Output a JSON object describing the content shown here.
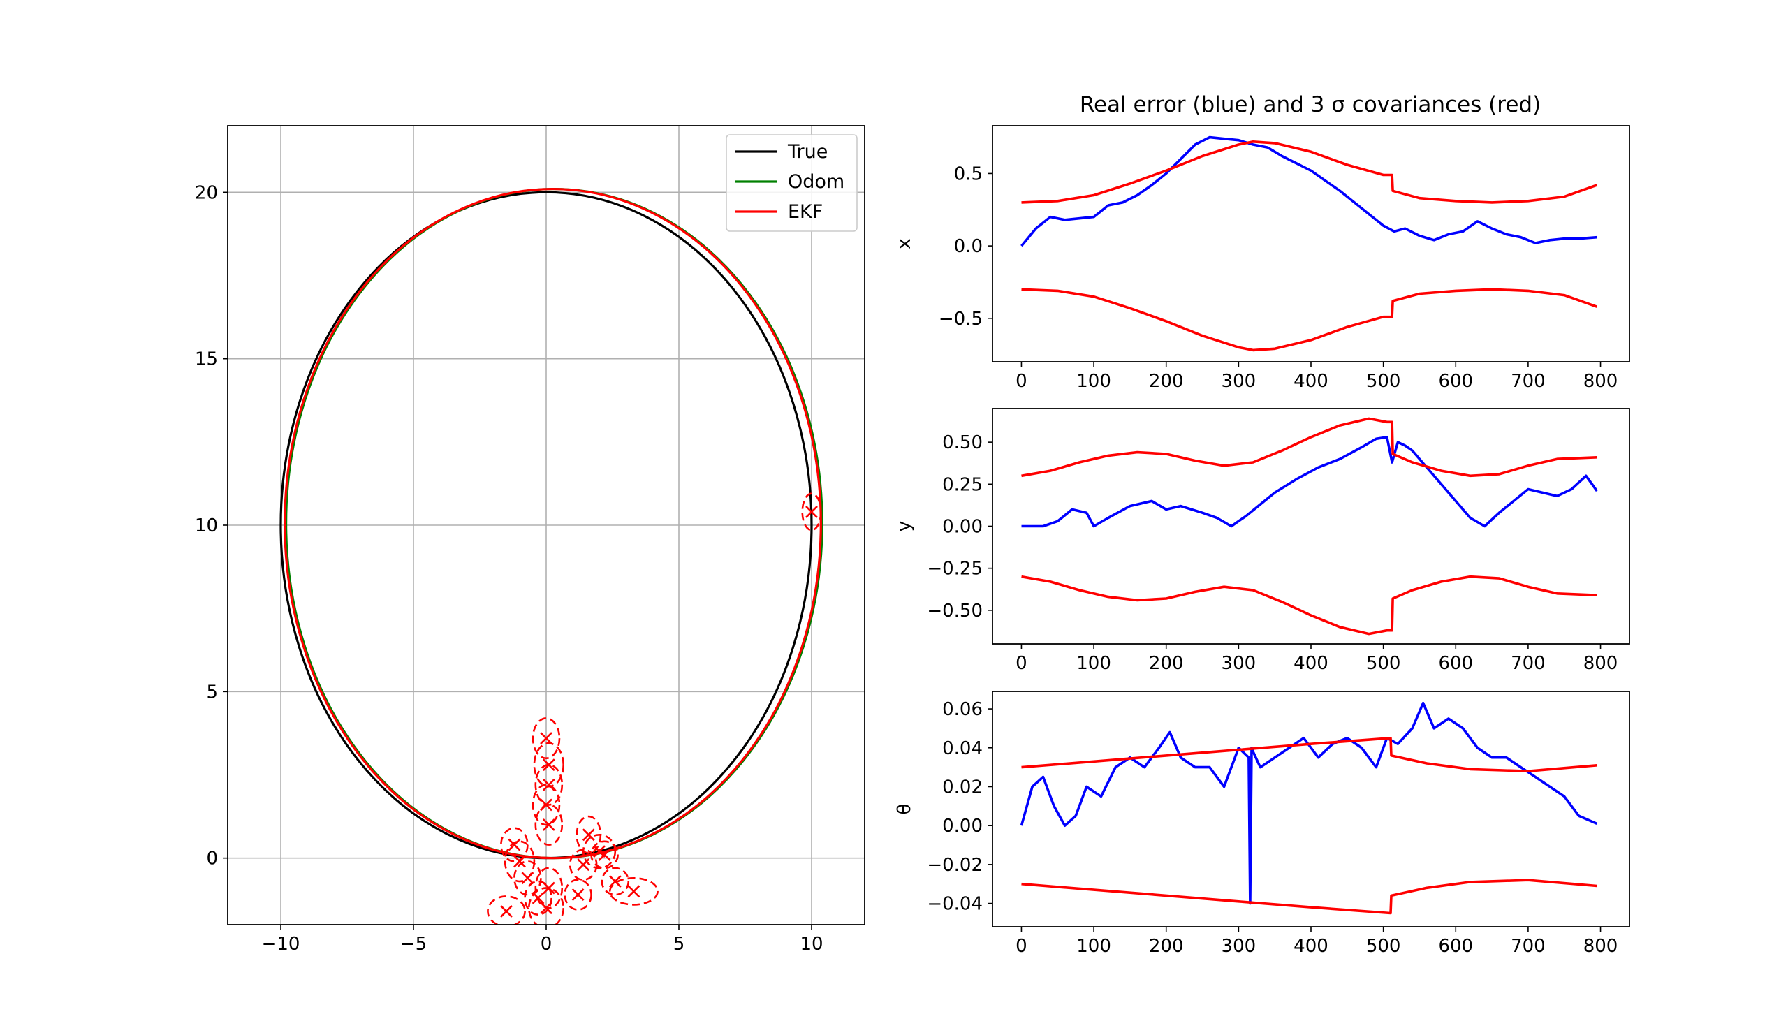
{
  "title": "Real error (blue) and 3 σ covariances (red)",
  "colors": {
    "true": "#000000",
    "odom": "#008000",
    "ekf": "#ff0000",
    "error": "#0000ff",
    "grid": "#b0b0b0"
  },
  "chart_data": [
    {
      "type": "line",
      "panel": "trajectory",
      "xlim": [
        -12,
        12
      ],
      "ylim": [
        -2,
        22
      ],
      "xticks": [
        -10,
        -5,
        0,
        5,
        10
      ],
      "xtick_labels": [
        "−10",
        "−5",
        "0",
        "5",
        "10"
      ],
      "yticks": [
        0,
        5,
        10,
        15,
        20
      ],
      "ytick_labels": [
        "0",
        "5",
        "10",
        "15",
        "20"
      ],
      "grid": true,
      "legend": {
        "placement": "top-right",
        "entries": [
          "True",
          "Odom",
          "EKF"
        ]
      },
      "series": [
        {
          "name": "True",
          "shape": "ellipse",
          "center": [
            0,
            10
          ],
          "semi_axes": [
            10,
            10
          ],
          "color": "#000000"
        },
        {
          "name": "Odom",
          "shape": "ellipse",
          "center": [
            0.3,
            10.05
          ],
          "semi_axes": [
            10.1,
            10.05
          ],
          "color": "#008000"
        },
        {
          "name": "EKF",
          "shape": "ellipse",
          "center": [
            0.25,
            10.05
          ],
          "semi_axes": [
            10.1,
            10.05
          ],
          "color": "#ff0000"
        }
      ],
      "covariance_ellipses": [
        {
          "x": 0.0,
          "y": 3.6,
          "rx": 0.5,
          "ry": 0.6
        },
        {
          "x": 0.1,
          "y": 2.8,
          "rx": 0.55,
          "ry": 0.65
        },
        {
          "x": 0.1,
          "y": 2.2,
          "rx": 0.5,
          "ry": 0.6
        },
        {
          "x": 0.0,
          "y": 1.6,
          "rx": 0.5,
          "ry": 0.6
        },
        {
          "x": 0.1,
          "y": 1.0,
          "rx": 0.5,
          "ry": 0.6
        },
        {
          "x": 1.6,
          "y": 0.7,
          "rx": 0.45,
          "ry": 0.55
        },
        {
          "x": 2.0,
          "y": 0.2,
          "rx": 0.6,
          "ry": 0.5
        },
        {
          "x": 2.2,
          "y": 0.1,
          "rx": 0.5,
          "ry": 0.4
        },
        {
          "x": 1.4,
          "y": -0.2,
          "rx": 0.5,
          "ry": 0.45
        },
        {
          "x": -1.2,
          "y": 0.4,
          "rx": 0.5,
          "ry": 0.5
        },
        {
          "x": -1.0,
          "y": -0.1,
          "rx": 0.55,
          "ry": 0.6
        },
        {
          "x": -0.7,
          "y": -0.6,
          "rx": 0.5,
          "ry": 0.5
        },
        {
          "x": 0.1,
          "y": -0.9,
          "rx": 0.5,
          "ry": 0.6
        },
        {
          "x": -0.3,
          "y": -1.2,
          "rx": 0.5,
          "ry": 0.5
        },
        {
          "x": 0.0,
          "y": -1.5,
          "rx": 0.65,
          "ry": 0.6
        },
        {
          "x": -1.5,
          "y": -1.6,
          "rx": 0.7,
          "ry": 0.45
        },
        {
          "x": 1.2,
          "y": -1.1,
          "rx": 0.5,
          "ry": 0.45
        },
        {
          "x": 2.6,
          "y": -0.7,
          "rx": 0.5,
          "ry": 0.4
        },
        {
          "x": 3.3,
          "y": -1.0,
          "rx": 0.9,
          "ry": 0.4
        },
        {
          "x": 10.0,
          "y": 10.4,
          "rx": 0.35,
          "ry": 0.55
        }
      ]
    },
    {
      "type": "line",
      "panel": "x-error",
      "ylabel": "x",
      "xlim": [
        -40,
        840
      ],
      "ylim": [
        -0.8,
        0.83
      ],
      "xticks": [
        0,
        100,
        200,
        300,
        400,
        500,
        600,
        700,
        800
      ],
      "xtick_labels": [
        "0",
        "100",
        "200",
        "300",
        "400",
        "500",
        "600",
        "700",
        "800"
      ],
      "yticks": [
        -0.5,
        0.0,
        0.5
      ],
      "ytick_labels": [
        "−0.5",
        "0.0",
        "0.5"
      ],
      "grid": false,
      "series": [
        {
          "role": "error",
          "color": "#0000ff",
          "x": [
            0,
            20,
            40,
            60,
            80,
            100,
            120,
            140,
            160,
            180,
            200,
            220,
            240,
            260,
            280,
            300,
            320,
            340,
            360,
            380,
            400,
            420,
            440,
            460,
            480,
            500,
            515,
            530,
            550,
            570,
            590,
            610,
            630,
            650,
            670,
            690,
            710,
            730,
            750,
            770,
            795
          ],
          "y": [
            0.0,
            0.12,
            0.2,
            0.18,
            0.19,
            0.2,
            0.28,
            0.3,
            0.35,
            0.42,
            0.5,
            0.6,
            0.7,
            0.75,
            0.74,
            0.73,
            0.7,
            0.68,
            0.62,
            0.57,
            0.52,
            0.45,
            0.38,
            0.3,
            0.22,
            0.14,
            0.1,
            0.12,
            0.07,
            0.04,
            0.08,
            0.1,
            0.17,
            0.12,
            0.08,
            0.06,
            0.02,
            0.04,
            0.05,
            0.05,
            0.06
          ]
        },
        {
          "role": "+3σ",
          "color": "#ff0000",
          "x": [
            0,
            50,
            100,
            150,
            200,
            250,
            300,
            320,
            350,
            400,
            450,
            500,
            512,
            513,
            550,
            600,
            650,
            700,
            750,
            795
          ],
          "y": [
            0.3,
            0.31,
            0.35,
            0.43,
            0.52,
            0.62,
            0.7,
            0.72,
            0.71,
            0.65,
            0.56,
            0.49,
            0.49,
            0.38,
            0.33,
            0.31,
            0.3,
            0.31,
            0.34,
            0.42
          ]
        },
        {
          "role": "-3σ",
          "color": "#ff0000",
          "x": [
            0,
            50,
            100,
            150,
            200,
            250,
            300,
            320,
            350,
            400,
            450,
            500,
            512,
            513,
            550,
            600,
            650,
            700,
            750,
            795
          ],
          "y": [
            -0.3,
            -0.31,
            -0.35,
            -0.43,
            -0.52,
            -0.62,
            -0.7,
            -0.72,
            -0.71,
            -0.65,
            -0.56,
            -0.49,
            -0.49,
            -0.38,
            -0.33,
            -0.31,
            -0.3,
            -0.31,
            -0.34,
            -0.42
          ]
        }
      ]
    },
    {
      "type": "line",
      "panel": "y-error",
      "ylabel": "y",
      "xlim": [
        -40,
        840
      ],
      "ylim": [
        -0.7,
        0.7
      ],
      "xticks": [
        0,
        100,
        200,
        300,
        400,
        500,
        600,
        700,
        800
      ],
      "xtick_labels": [
        "0",
        "100",
        "200",
        "300",
        "400",
        "500",
        "600",
        "700",
        "800"
      ],
      "yticks": [
        -0.5,
        -0.25,
        0.0,
        0.25,
        0.5
      ],
      "ytick_labels": [
        "−0.50",
        "−0.25",
        "0.00",
        "0.25",
        "0.50"
      ],
      "grid": false,
      "series": [
        {
          "role": "error",
          "color": "#0000ff",
          "x": [
            0,
            30,
            50,
            70,
            90,
            100,
            120,
            150,
            180,
            200,
            220,
            250,
            270,
            290,
            310,
            330,
            350,
            380,
            410,
            440,
            470,
            490,
            505,
            512,
            520,
            530,
            540,
            560,
            580,
            600,
            620,
            640,
            660,
            680,
            700,
            720,
            740,
            760,
            780,
            795
          ],
          "y": [
            0.0,
            0.0,
            0.03,
            0.1,
            0.08,
            0.0,
            0.05,
            0.12,
            0.15,
            0.1,
            0.12,
            0.08,
            0.05,
            0.0,
            0.06,
            0.13,
            0.2,
            0.28,
            0.35,
            0.4,
            0.47,
            0.52,
            0.53,
            0.38,
            0.5,
            0.48,
            0.45,
            0.35,
            0.25,
            0.15,
            0.05,
            0.0,
            0.08,
            0.15,
            0.22,
            0.2,
            0.18,
            0.22,
            0.3,
            0.21
          ]
        },
        {
          "role": "+3σ",
          "color": "#ff0000",
          "x": [
            0,
            40,
            80,
            120,
            160,
            200,
            240,
            280,
            320,
            360,
            400,
            440,
            480,
            505,
            512,
            513,
            540,
            580,
            620,
            660,
            700,
            740,
            795
          ],
          "y": [
            0.3,
            0.33,
            0.38,
            0.42,
            0.44,
            0.43,
            0.39,
            0.36,
            0.38,
            0.45,
            0.53,
            0.6,
            0.64,
            0.62,
            0.62,
            0.43,
            0.38,
            0.33,
            0.3,
            0.31,
            0.36,
            0.4,
            0.41
          ]
        },
        {
          "role": "-3σ",
          "color": "#ff0000",
          "x": [
            0,
            40,
            80,
            120,
            160,
            200,
            240,
            280,
            320,
            360,
            400,
            440,
            480,
            505,
            512,
            513,
            540,
            580,
            620,
            660,
            700,
            740,
            795
          ],
          "y": [
            -0.3,
            -0.33,
            -0.38,
            -0.42,
            -0.44,
            -0.43,
            -0.39,
            -0.36,
            -0.38,
            -0.45,
            -0.53,
            -0.6,
            -0.64,
            -0.62,
            -0.62,
            -0.43,
            -0.38,
            -0.33,
            -0.3,
            -0.31,
            -0.36,
            -0.4,
            -0.41
          ]
        }
      ]
    },
    {
      "type": "line",
      "panel": "theta-error",
      "ylabel": "θ",
      "xlim": [
        -40,
        840
      ],
      "ylim": [
        -0.052,
        0.069
      ],
      "xticks": [
        0,
        100,
        200,
        300,
        400,
        500,
        600,
        700,
        800
      ],
      "xtick_labels": [
        "0",
        "100",
        "200",
        "300",
        "400",
        "500",
        "600",
        "700",
        "800"
      ],
      "yticks": [
        -0.04,
        -0.02,
        0.0,
        0.02,
        0.04,
        0.06
      ],
      "ytick_labels": [
        "−0.04",
        "−0.02",
        "0.00",
        "0.02",
        "0.04",
        "0.06"
      ],
      "grid": false,
      "series": [
        {
          "role": "error",
          "color": "#0000ff",
          "x": [
            0,
            15,
            30,
            45,
            60,
            75,
            90,
            110,
            130,
            150,
            170,
            190,
            205,
            220,
            240,
            260,
            280,
            300,
            314,
            316,
            318,
            320,
            330,
            350,
            370,
            390,
            410,
            430,
            450,
            470,
            490,
            505,
            520,
            540,
            555,
            570,
            590,
            610,
            630,
            650,
            670,
            690,
            710,
            730,
            750,
            770,
            795
          ],
          "y": [
            0.0,
            0.02,
            0.025,
            0.01,
            0.0,
            0.005,
            0.02,
            0.015,
            0.03,
            0.035,
            0.03,
            0.04,
            0.048,
            0.035,
            0.03,
            0.03,
            0.02,
            0.04,
            0.035,
            -0.04,
            0.04,
            0.038,
            0.03,
            0.035,
            0.04,
            0.045,
            0.035,
            0.042,
            0.045,
            0.04,
            0.03,
            0.045,
            0.042,
            0.05,
            0.063,
            0.05,
            0.055,
            0.05,
            0.04,
            0.035,
            0.035,
            0.03,
            0.025,
            0.02,
            0.015,
            0.005,
            0.001
          ]
        },
        {
          "role": "+3σ",
          "color": "#ff0000",
          "x": [
            0,
            100,
            200,
            300,
            400,
            510,
            511,
            560,
            620,
            700,
            795
          ],
          "y": [
            0.03,
            0.033,
            0.036,
            0.039,
            0.042,
            0.045,
            0.036,
            0.032,
            0.029,
            0.028,
            0.031
          ]
        },
        {
          "role": "-3σ",
          "color": "#ff0000",
          "x": [
            0,
            100,
            200,
            300,
            400,
            510,
            511,
            560,
            620,
            700,
            795
          ],
          "y": [
            -0.03,
            -0.033,
            -0.036,
            -0.039,
            -0.042,
            -0.045,
            -0.036,
            -0.032,
            -0.029,
            -0.028,
            -0.031
          ]
        }
      ]
    }
  ]
}
